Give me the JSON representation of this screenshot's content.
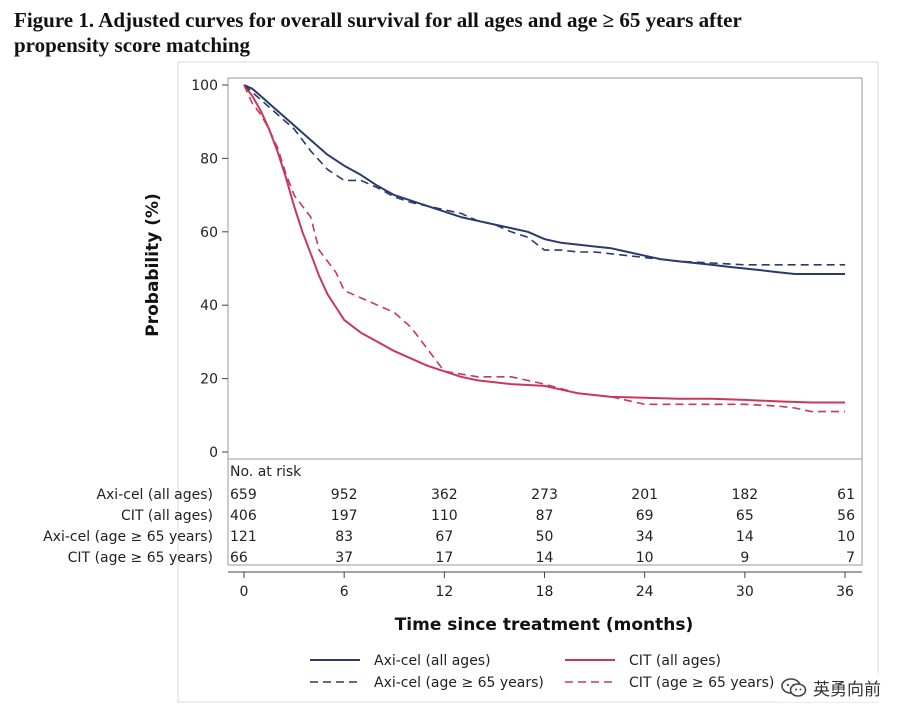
{
  "figure": {
    "title_line1": "Figure 1. Adjusted curves for overall survival for all ages and age ≥ 65 years after",
    "title_line2": "propensity score matching"
  },
  "watermark": {
    "text": "英勇向前",
    "icon": "wechat-icon"
  },
  "chart_data": {
    "type": "line",
    "title": "Figure 1. Adjusted curves for overall survival for all ages and age ≥ 65 years after propensity score matching",
    "xlabel": "Time since treatment (months)",
    "ylabel": "Probability (%)",
    "xlim": [
      0,
      36
    ],
    "ylim": [
      0,
      100
    ],
    "x_ticks": [
      0,
      6,
      12,
      18,
      24,
      30,
      36
    ],
    "y_ticks": [
      0,
      20,
      40,
      60,
      80,
      100
    ],
    "grid": false,
    "legend_position": "bottom",
    "series": [
      {
        "name": "Axi-cel (all ages)",
        "color": "#2b3a6e",
        "dash": "solid",
        "x": [
          0,
          0.5,
          1,
          1.5,
          2,
          3,
          4,
          5,
          6,
          7,
          8,
          9,
          10,
          11,
          12,
          13,
          14,
          15,
          16,
          17,
          18,
          19,
          20,
          21,
          22,
          23,
          24,
          25,
          26,
          27,
          28,
          29,
          30,
          31,
          32,
          33,
          34,
          35,
          36
        ],
        "y": [
          100,
          99,
          97,
          95,
          93,
          89,
          85,
          81,
          78,
          75.5,
          72.5,
          70,
          68.5,
          67,
          65.5,
          64,
          63,
          62,
          61,
          60,
          58,
          57,
          56.5,
          56,
          55.5,
          54.5,
          53.5,
          52.5,
          52,
          51.5,
          51,
          50.5,
          50,
          49.5,
          49,
          48.5,
          48.5,
          48.5,
          48.5
        ]
      },
      {
        "name": "CIT (all ages)",
        "color": "#c8385a",
        "dash": "solid",
        "x": [
          0,
          0.5,
          1,
          1.5,
          2,
          2.5,
          3,
          3.5,
          4,
          4.5,
          5,
          5.5,
          6,
          7,
          8,
          9,
          10,
          11,
          12,
          13,
          14,
          16,
          18,
          20,
          22,
          24,
          26,
          28,
          30,
          32,
          34,
          36
        ],
        "y": [
          100,
          97,
          93,
          88,
          82,
          75,
          67,
          60,
          54,
          48,
          43,
          39.5,
          36,
          32.5,
          30,
          27.5,
          25.5,
          23.5,
          22,
          20.5,
          19.5,
          18.5,
          18,
          16,
          15,
          14.8,
          14.5,
          14.5,
          14.2,
          13.8,
          13.5,
          13.5
        ]
      },
      {
        "name": "Axi-cel (age ≥ 65 years)",
        "color": "#2b3a6e",
        "dash": "dashed",
        "x": [
          0,
          1,
          2,
          3,
          4,
          5,
          6,
          7,
          8,
          9,
          10,
          11,
          12,
          13,
          14,
          15,
          16,
          17,
          18,
          19,
          20,
          21,
          22,
          23,
          24,
          26,
          28,
          30,
          32,
          34,
          36
        ],
        "y": [
          100,
          96,
          92,
          88,
          82,
          77,
          74,
          74,
          72,
          69.5,
          68,
          67,
          66,
          65,
          63,
          62,
          60,
          58.5,
          55,
          55,
          54.5,
          54.5,
          54,
          53.5,
          53,
          52,
          51.5,
          51,
          51,
          51,
          51
        ]
      },
      {
        "name": "CIT (age ≥ 65 years)",
        "color": "#c8385a",
        "dash": "dashed",
        "x": [
          0,
          0.5,
          1,
          1.5,
          2,
          2.5,
          3,
          3.5,
          4,
          4.5,
          5,
          5.5,
          6,
          7,
          8,
          9,
          10,
          11,
          12,
          14,
          16,
          18,
          20,
          22,
          24,
          26,
          28,
          30,
          32,
          33,
          34,
          36
        ],
        "y": [
          100,
          95,
          92,
          88,
          83,
          76,
          70,
          67,
          64,
          55,
          52,
          49,
          44,
          42,
          40,
          38,
          34,
          28,
          22,
          20.5,
          20.5,
          18.5,
          16,
          15,
          13,
          13,
          13,
          13,
          12.5,
          12,
          11,
          11
        ]
      }
    ],
    "risk_table": {
      "header": "No. at risk",
      "time_points": [
        0,
        6,
        12,
        18,
        24,
        30,
        36
      ],
      "rows": [
        {
          "label": "Axi-cel (all ages)",
          "values": [
            659,
            952,
            362,
            273,
            201,
            182,
            61
          ]
        },
        {
          "label": "CIT (all ages)",
          "values": [
            406,
            197,
            110,
            87,
            69,
            65,
            56
          ]
        },
        {
          "label": "Axi-cel (age ≥ 65 years)",
          "values": [
            121,
            83,
            67,
            50,
            34,
            14,
            10
          ]
        },
        {
          "label": "CIT (age ≥ 65 years)",
          "values": [
            66,
            37,
            17,
            14,
            10,
            9,
            7
          ]
        }
      ]
    }
  }
}
